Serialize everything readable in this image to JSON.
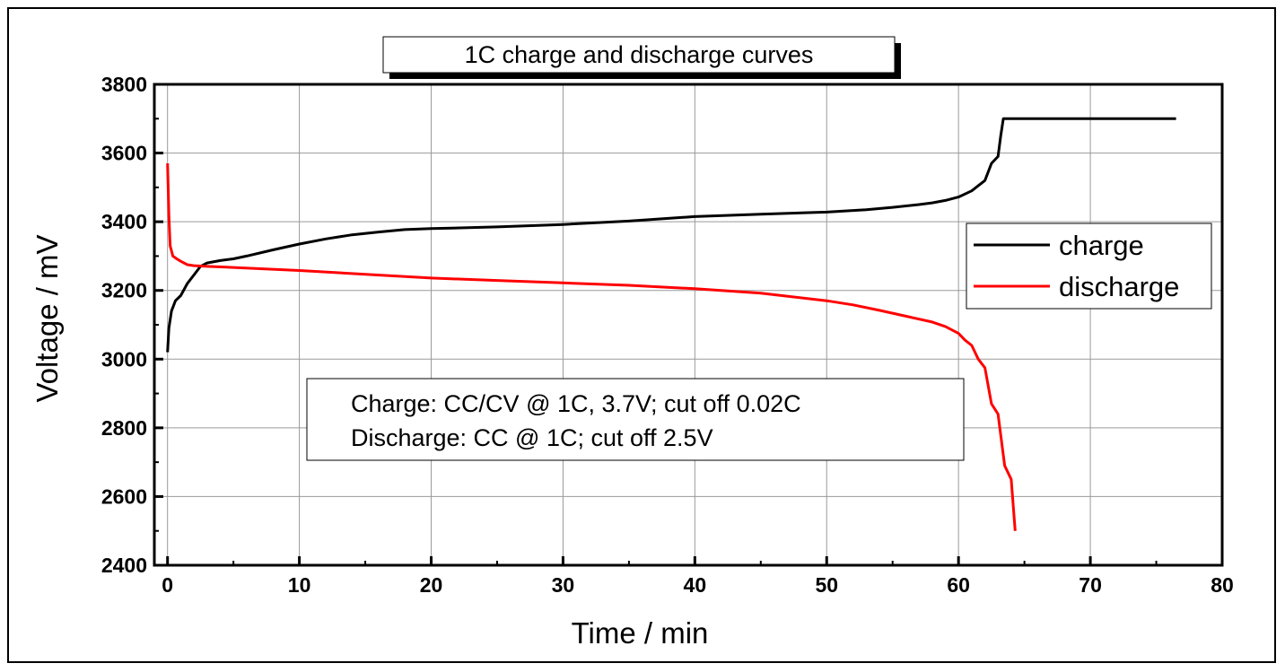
{
  "chart_data": {
    "type": "line",
    "title": "1C charge and discharge curves",
    "xlabel": "Time / min",
    "ylabel": "Voltage / mV",
    "xlim": [
      -1,
      80
    ],
    "ylim": [
      2400,
      3800
    ],
    "xticks": [
      0,
      10,
      20,
      30,
      40,
      50,
      60,
      70,
      80
    ],
    "yticks": [
      2400,
      2600,
      2800,
      3000,
      3200,
      3400,
      3600,
      3800
    ],
    "grid": true,
    "legend_position": "right",
    "annotation": [
      "Charge: CC/CV @ 1C, 3.7V; cut off 0.02C",
      "Discharge: CC @ 1C; cut off 2.5V"
    ],
    "series": [
      {
        "name": "charge",
        "color": "#000000",
        "x": [
          0,
          0.1,
          0.3,
          0.6,
          1.0,
          1.5,
          2.0,
          2.5,
          3.0,
          4.0,
          5.0,
          6.0,
          8.0,
          10.0,
          12.0,
          14.0,
          16.0,
          18.0,
          20.0,
          25.0,
          30.0,
          35.0,
          40.0,
          45.0,
          50.0,
          53.0,
          55.0,
          57.0,
          58.0,
          59.0,
          60.0,
          61.0,
          61.5,
          62.0,
          62.5,
          63.0,
          63.2,
          63.4,
          64.0,
          70.0,
          76.5
        ],
        "y": [
          3020,
          3090,
          3140,
          3170,
          3185,
          3220,
          3245,
          3270,
          3280,
          3287,
          3292,
          3300,
          3318,
          3335,
          3350,
          3362,
          3370,
          3377,
          3380,
          3385,
          3392,
          3402,
          3415,
          3422,
          3428,
          3435,
          3442,
          3450,
          3455,
          3462,
          3472,
          3490,
          3505,
          3520,
          3570,
          3590,
          3650,
          3700,
          3700,
          3700,
          3700
        ]
      },
      {
        "name": "discharge",
        "color": "#ff0000",
        "x": [
          0,
          0.1,
          0.2,
          0.4,
          0.7,
          1.0,
          1.5,
          2.0,
          3.0,
          5.0,
          10.0,
          15.0,
          20.0,
          25.0,
          30.0,
          35.0,
          40.0,
          45.0,
          50.0,
          52.0,
          54.0,
          56.0,
          58.0,
          59.0,
          60.0,
          60.5,
          61.0,
          61.5,
          62.0,
          62.5,
          63.0,
          63.5,
          64.0,
          64.3
        ],
        "y": [
          3570,
          3420,
          3330,
          3300,
          3292,
          3285,
          3275,
          3272,
          3270,
          3267,
          3258,
          3247,
          3236,
          3229,
          3222,
          3215,
          3205,
          3192,
          3170,
          3158,
          3142,
          3125,
          3108,
          3095,
          3075,
          3055,
          3040,
          3000,
          2975,
          2870,
          2840,
          2690,
          2650,
          2500
        ]
      }
    ]
  }
}
